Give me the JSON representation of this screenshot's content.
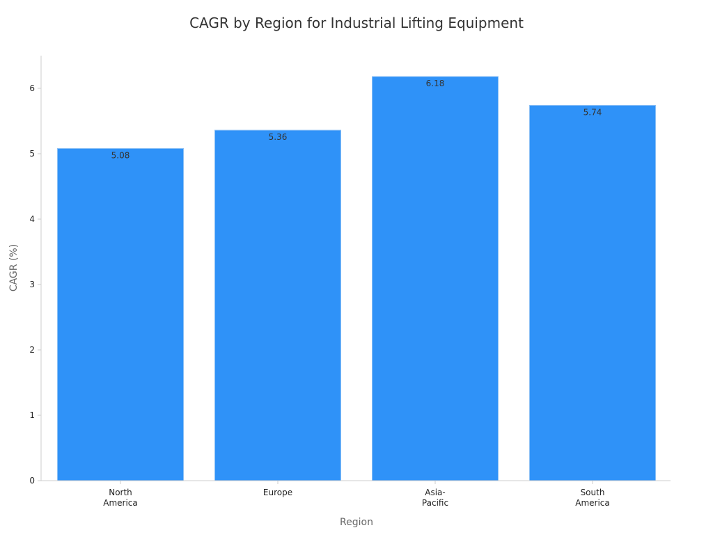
{
  "chart_data": {
    "type": "bar",
    "title": "CAGR by Region for Industrial Lifting Equipment",
    "xlabel": "Region",
    "ylabel": "CAGR (%)",
    "categories": [
      [
        "North",
        "America"
      ],
      [
        "Europe"
      ],
      [
        "Asia-",
        "Pacific"
      ],
      [
        "South",
        "America"
      ]
    ],
    "values": [
      5.08,
      5.36,
      6.18,
      5.74
    ],
    "data_labels": [
      "5.08",
      "5.36",
      "6.18",
      "5.74"
    ],
    "yticks": [
      0,
      1,
      2,
      3,
      4,
      5,
      6
    ],
    "ylim": [
      0,
      6.5
    ],
    "grid": false,
    "bar_color": "#2f92f8",
    "bar_edge_color": "#8cc0f5"
  }
}
